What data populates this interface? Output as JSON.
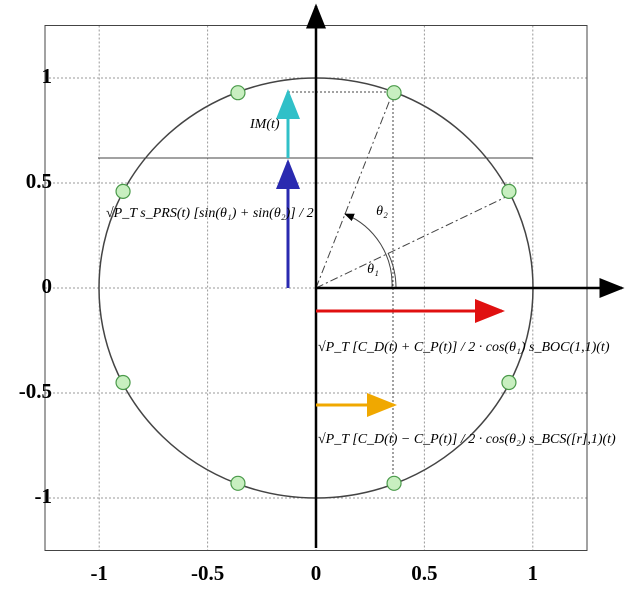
{
  "chart_data": {
    "type": "scatter",
    "x": [
      -0.36,
      0.36,
      -0.89,
      0.89,
      -0.89,
      0.89,
      -0.36,
      0.36
    ],
    "values": [
      0.93,
      0.93,
      0.46,
      0.46,
      -0.45,
      -0.45,
      -0.93,
      -0.93
    ],
    "color": "#c8efc0",
    "xlim": [
      -1.25,
      1.25
    ],
    "ylim": [
      -1.25,
      1.25
    ],
    "xticks": [
      -1,
      -0.5,
      0,
      0.5,
      1
    ],
    "yticks": [
      -1,
      -0.5,
      0,
      0.5,
      1
    ],
    "grid": true,
    "annotations": [
      "IM(t)",
      "θ₁",
      "θ₂",
      "√P_T s_PRS(t) [sin(θ₁) + sin(θ₂)] / 2",
      "√P_T [C_D(t) + C_P(t)] / 2 · cos(θ₁) s_BOC(1,1)(t)",
      "√P_T [C_D(t) − C_P(t)] / 2 · cos(θ₂) s_BCS([r],1)(t)"
    ]
  }
}
